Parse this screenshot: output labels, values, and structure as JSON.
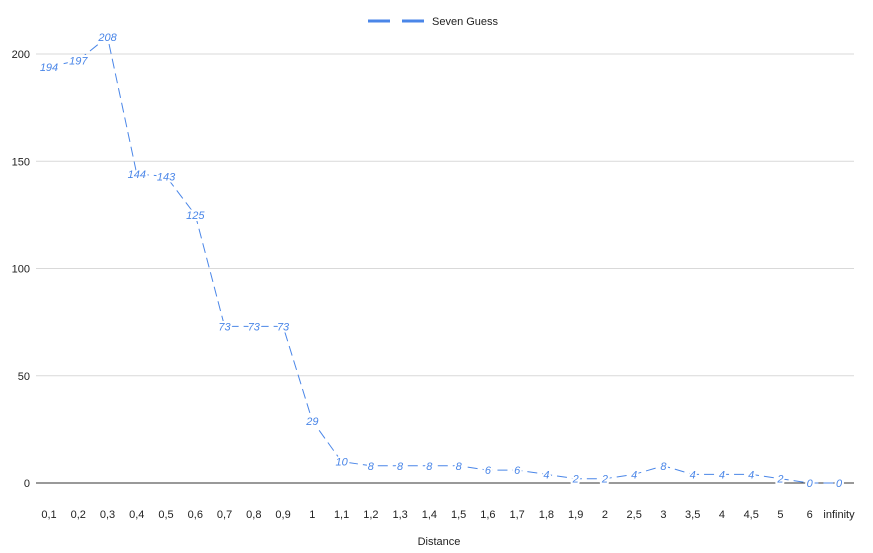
{
  "chart_data": {
    "type": "line",
    "title": "",
    "xlabel": "Distance",
    "ylabel": "",
    "ylim": [
      0,
      200
    ],
    "yticks": [
      0,
      50,
      100,
      150,
      200
    ],
    "grid": true,
    "legend_position": "top-center",
    "categories": [
      "0,1",
      "0,2",
      "0,3",
      "0,4",
      "0,5",
      "0,6",
      "0,7",
      "0,8",
      "0,9",
      "1",
      "1,1",
      "1,2",
      "1,3",
      "1,4",
      "1,5",
      "1,6",
      "1,7",
      "1,8",
      "1,9",
      "2",
      "2,5",
      "3",
      "3,5",
      "4",
      "4,5",
      "5",
      "6",
      "infinity"
    ],
    "series": [
      {
        "name": "Seven Guess",
        "color": "#4a86e8",
        "line_style": "dashed",
        "values": [
          194,
          197,
          208,
          144,
          143,
          125,
          73,
          73,
          73,
          29,
          10,
          8,
          8,
          8,
          8,
          6,
          6,
          4,
          2,
          2,
          4,
          8,
          4,
          4,
          4,
          2,
          0,
          0
        ]
      }
    ]
  }
}
